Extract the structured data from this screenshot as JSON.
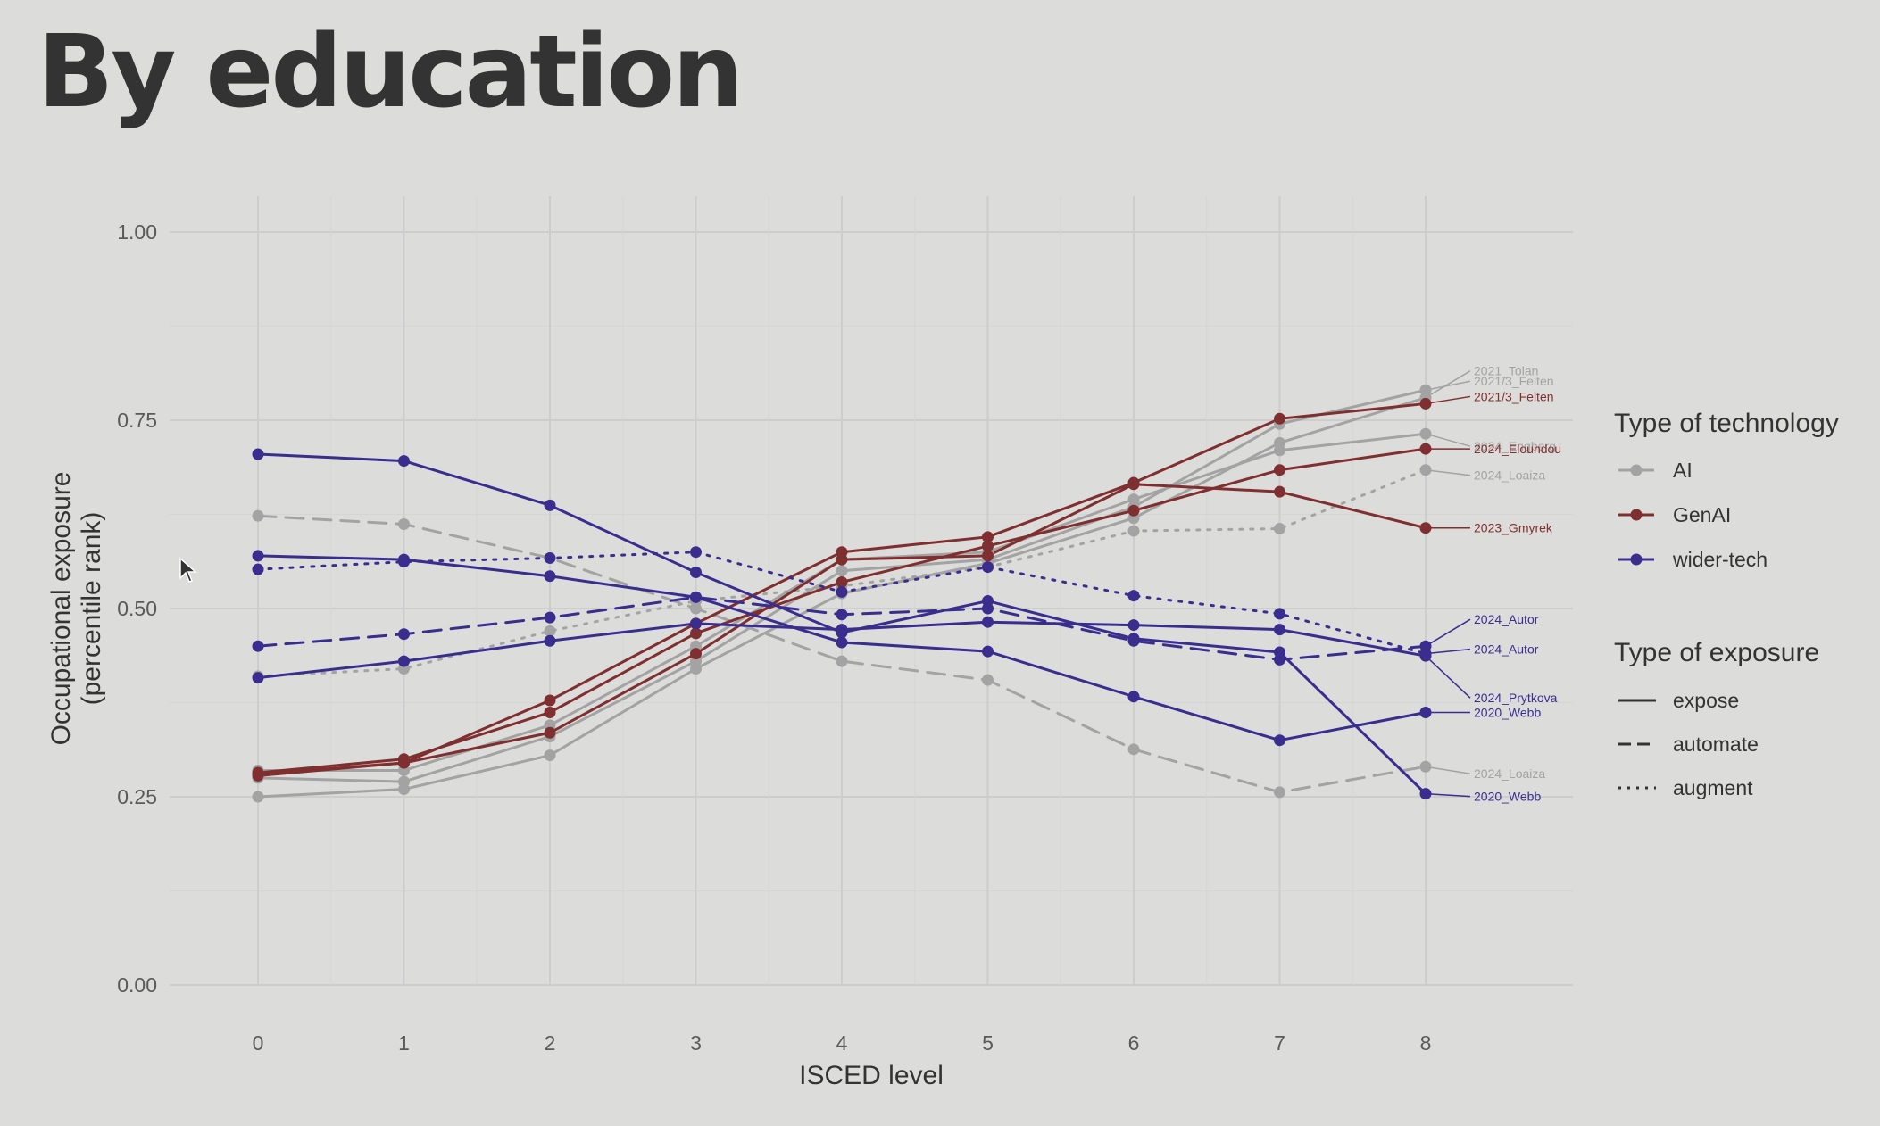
{
  "slide": {
    "title": "By education"
  },
  "chart_data": {
    "type": "line",
    "title": "",
    "xlabel": "ISCED level",
    "ylabel": [
      "Occupational exposure",
      "(percentile rank)"
    ],
    "x": [
      0,
      1,
      2,
      3,
      4,
      5,
      6,
      7,
      8
    ],
    "xlim": [
      -0.6,
      8.99
    ],
    "ylim": [
      0,
      1
    ],
    "y_ticks": [
      0.0,
      0.25,
      0.5,
      0.75,
      1.0
    ],
    "y_tick_labels": [
      "0.00",
      "0.25",
      "0.50",
      "0.75",
      "1.00"
    ],
    "grid": true,
    "colors": {
      "AI": "#a3a3a3",
      "GenAI": "#7f2f2f",
      "wider-tech": "#3a2d8e"
    },
    "legend": {
      "position": "right",
      "technology_title": "Type of technology",
      "technology": [
        "AI",
        "GenAI",
        "wider-tech"
      ],
      "exposure_title": "Type of exposure",
      "exposure": [
        "expose",
        "automate",
        "augment"
      ]
    },
    "series": [
      {
        "name": "2021_Tolan",
        "tech": "AI",
        "exposure": "expose",
        "values": [
          0.25,
          0.26,
          0.305,
          0.42,
          0.52,
          0.56,
          0.62,
          0.72,
          0.78
        ]
      },
      {
        "name": "2021/3_Felten",
        "tech": "AI",
        "exposure": "expose",
        "values": [
          0.275,
          0.27,
          0.33,
          0.43,
          0.55,
          0.565,
          0.635,
          0.745,
          0.79
        ]
      },
      {
        "name": "2024_Engberg",
        "tech": "AI",
        "exposure": "expose",
        "values": [
          0.285,
          0.285,
          0.345,
          0.45,
          0.565,
          0.575,
          0.645,
          0.71,
          0.732
        ]
      },
      {
        "name": "2024_Loaiza",
        "tech": "AI",
        "exposure": "augment",
        "values": [
          0.41,
          0.42,
          0.47,
          0.51,
          0.53,
          0.555,
          0.603,
          0.606,
          0.684
        ]
      },
      {
        "name": "2024_Loaiza",
        "tech": "AI",
        "exposure": "automate",
        "values": [
          0.623,
          0.612,
          0.567,
          0.5,
          0.43,
          0.405,
          0.313,
          0.256,
          0.29
        ]
      },
      {
        "name": "2021/3_Felten",
        "tech": "GenAI",
        "exposure": "expose",
        "values": [
          0.28,
          0.295,
          0.378,
          0.48,
          0.575,
          0.595,
          0.667,
          0.752,
          0.772
        ]
      },
      {
        "name": "2024_Eloundou",
        "tech": "GenAI",
        "exposure": "expose",
        "values": [
          0.282,
          0.3,
          0.362,
          0.467,
          0.535,
          0.583,
          0.63,
          0.684,
          0.712
        ]
      },
      {
        "name": "2023_Gmyrek",
        "tech": "GenAI",
        "exposure": "expose",
        "values": [
          0.278,
          0.295,
          0.335,
          0.44,
          0.565,
          0.57,
          0.665,
          0.655,
          0.607
        ]
      },
      {
        "name": "2024_Autor",
        "tech": "wider-tech",
        "exposure": "automate",
        "values": [
          0.45,
          0.466,
          0.488,
          0.515,
          0.492,
          0.5,
          0.457,
          0.432,
          0.45
        ]
      },
      {
        "name": "2024_Autor",
        "tech": "wider-tech",
        "exposure": "augment",
        "values": [
          0.552,
          0.562,
          0.567,
          0.575,
          0.522,
          0.555,
          0.517,
          0.493,
          0.44
        ]
      },
      {
        "name": "2024_Prytkova",
        "tech": "wider-tech",
        "exposure": "expose",
        "values": [
          0.408,
          0.43,
          0.457,
          0.48,
          0.472,
          0.482,
          0.478,
          0.472,
          0.437
        ]
      },
      {
        "name": "2020_Webb",
        "tech": "wider-tech",
        "exposure": "expose",
        "values": [
          0.57,
          0.565,
          0.543,
          0.515,
          0.455,
          0.443,
          0.383,
          0.325,
          0.362
        ]
      },
      {
        "name": "2020_Webb",
        "tech": "wider-tech",
        "exposure": "expose",
        "values": [
          0.705,
          0.696,
          0.637,
          0.548,
          0.468,
          0.51,
          0.46,
          0.442,
          0.254
        ]
      }
    ]
  }
}
